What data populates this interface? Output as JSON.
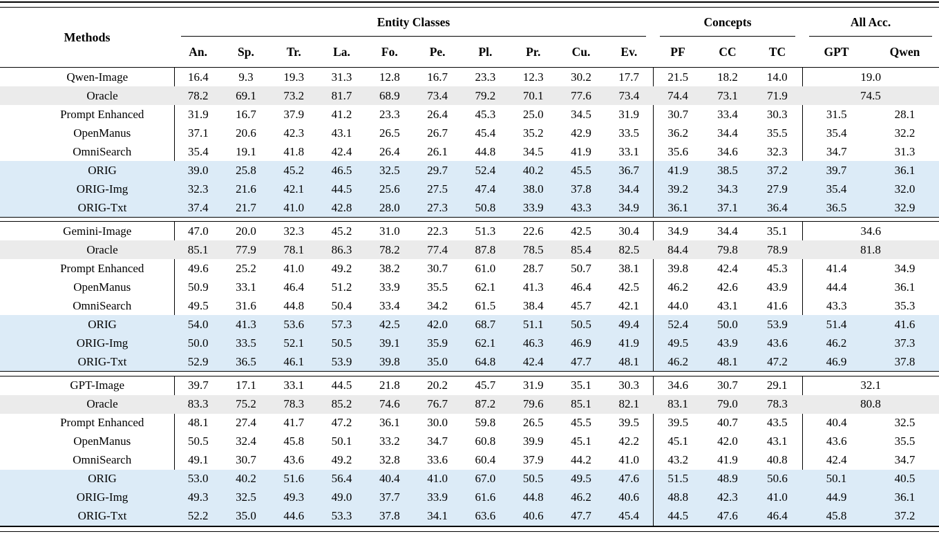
{
  "table": {
    "methods_header": "Methods",
    "groups": [
      {
        "label": "Entity Classes",
        "cols": [
          "An.",
          "Sp.",
          "Tr.",
          "La.",
          "Fo.",
          "Pe.",
          "Pl.",
          "Pr.",
          "Cu.",
          "Ev."
        ]
      },
      {
        "label": "Concepts",
        "cols": [
          "PF",
          "CC",
          "TC"
        ]
      },
      {
        "label": "All Acc.",
        "cols": [
          "GPT",
          "Qwen"
        ]
      }
    ],
    "blocks": [
      {
        "rows": [
          {
            "method": "Qwen-Image",
            "style": "base",
            "entity": [
              "16.4",
              "9.3",
              "19.3",
              "31.3",
              "12.8",
              "16.7",
              "23.3",
              "12.3",
              "30.2",
              "17.7"
            ],
            "concepts": [
              "21.5",
              "18.2",
              "14.0"
            ],
            "all_acc": [
              "19.0"
            ]
          },
          {
            "method": "Oracle",
            "style": "oracle",
            "entity": [
              "78.2",
              "69.1",
              "73.2",
              "81.7",
              "68.9",
              "73.4",
              "79.2",
              "70.1",
              "77.6",
              "73.4"
            ],
            "concepts": [
              "74.4",
              "73.1",
              "71.9"
            ],
            "all_acc": [
              "74.5"
            ]
          },
          {
            "method": "Prompt Enhanced",
            "style": "plain",
            "entity": [
              "31.9",
              "16.7",
              "37.9",
              "41.2",
              "23.3",
              "26.4",
              "45.3",
              "25.0",
              "34.5",
              "31.9"
            ],
            "concepts": [
              "30.7",
              "33.4",
              "30.3"
            ],
            "all_acc": [
              "31.5",
              "28.1"
            ]
          },
          {
            "method": "OpenManus",
            "style": "plain",
            "entity": [
              "37.1",
              "20.6",
              "42.3",
              "43.1",
              "26.5",
              "26.7",
              "45.4",
              "35.2",
              "42.9",
              "33.5"
            ],
            "concepts": [
              "36.2",
              "34.4",
              "35.5"
            ],
            "all_acc": [
              "35.4",
              "32.2"
            ]
          },
          {
            "method": "OmniSearch",
            "style": "plain",
            "entity": [
              "35.4",
              "19.1",
              "41.8",
              "42.4",
              "26.4",
              "26.1",
              "44.8",
              "34.5",
              "41.9",
              "33.1"
            ],
            "concepts": [
              "35.6",
              "34.6",
              "32.3"
            ],
            "all_acc": [
              "34.7",
              "31.3"
            ]
          },
          {
            "method": "ORIG",
            "style": "orig",
            "entity": [
              "39.0",
              "25.8",
              "45.2",
              "46.5",
              "32.5",
              "29.7",
              "52.4",
              "40.2",
              "45.5",
              "36.7"
            ],
            "concepts": [
              "41.9",
              "38.5",
              "37.2"
            ],
            "all_acc": [
              "39.7",
              "36.1"
            ]
          },
          {
            "method": "ORIG-Img",
            "style": "orig",
            "entity": [
              "32.3",
              "21.6",
              "42.1",
              "44.5",
              "25.6",
              "27.5",
              "47.4",
              "38.0",
              "37.8",
              "34.4"
            ],
            "concepts": [
              "39.2",
              "34.3",
              "27.9"
            ],
            "all_acc": [
              "35.4",
              "32.0"
            ]
          },
          {
            "method": "ORIG-Txt",
            "style": "orig",
            "entity": [
              "37.4",
              "21.7",
              "41.0",
              "42.8",
              "28.0",
              "27.3",
              "50.8",
              "33.9",
              "43.3",
              "34.9"
            ],
            "concepts": [
              "36.1",
              "37.1",
              "36.4"
            ],
            "all_acc": [
              "36.5",
              "32.9"
            ]
          }
        ]
      },
      {
        "rows": [
          {
            "method": "Gemini-Image",
            "style": "base",
            "entity": [
              "47.0",
              "20.0",
              "32.3",
              "45.2",
              "31.0",
              "22.3",
              "51.3",
              "22.6",
              "42.5",
              "30.4"
            ],
            "concepts": [
              "34.9",
              "34.4",
              "35.1"
            ],
            "all_acc": [
              "34.6"
            ]
          },
          {
            "method": "Oracle",
            "style": "oracle",
            "entity": [
              "85.1",
              "77.9",
              "78.1",
              "86.3",
              "78.2",
              "77.4",
              "87.8",
              "78.5",
              "85.4",
              "82.5"
            ],
            "concepts": [
              "84.4",
              "79.8",
              "78.9"
            ],
            "all_acc": [
              "81.8"
            ]
          },
          {
            "method": "Prompt Enhanced",
            "style": "plain",
            "entity": [
              "49.6",
              "25.2",
              "41.0",
              "49.2",
              "38.2",
              "30.7",
              "61.0",
              "28.7",
              "50.7",
              "38.1"
            ],
            "concepts": [
              "39.8",
              "42.4",
              "45.3"
            ],
            "all_acc": [
              "41.4",
              "34.9"
            ]
          },
          {
            "method": "OpenManus",
            "style": "plain",
            "entity": [
              "50.9",
              "33.1",
              "46.4",
              "51.2",
              "33.9",
              "35.5",
              "62.1",
              "41.3",
              "46.4",
              "42.5"
            ],
            "concepts": [
              "46.2",
              "42.6",
              "43.9"
            ],
            "all_acc": [
              "44.4",
              "36.1"
            ]
          },
          {
            "method": "OmniSearch",
            "style": "plain",
            "entity": [
              "49.5",
              "31.6",
              "44.8",
              "50.4",
              "33.4",
              "34.2",
              "61.5",
              "38.4",
              "45.7",
              "42.1"
            ],
            "concepts": [
              "44.0",
              "43.1",
              "41.6"
            ],
            "all_acc": [
              "43.3",
              "35.3"
            ]
          },
          {
            "method": "ORIG",
            "style": "orig",
            "entity": [
              "54.0",
              "41.3",
              "53.6",
              "57.3",
              "42.5",
              "42.0",
              "68.7",
              "51.1",
              "50.5",
              "49.4"
            ],
            "concepts": [
              "52.4",
              "50.0",
              "53.9"
            ],
            "all_acc": [
              "51.4",
              "41.6"
            ]
          },
          {
            "method": "ORIG-Img",
            "style": "orig",
            "entity": [
              "50.0",
              "33.5",
              "52.1",
              "50.5",
              "39.1",
              "35.9",
              "62.1",
              "46.3",
              "46.9",
              "41.9"
            ],
            "concepts": [
              "49.5",
              "43.9",
              "43.6"
            ],
            "all_acc": [
              "46.2",
              "37.3"
            ]
          },
          {
            "method": "ORIG-Txt",
            "style": "orig",
            "entity": [
              "52.9",
              "36.5",
              "46.1",
              "53.9",
              "39.8",
              "35.0",
              "64.8",
              "42.4",
              "47.7",
              "48.1"
            ],
            "concepts": [
              "46.2",
              "48.1",
              "47.2"
            ],
            "all_acc": [
              "46.9",
              "37.8"
            ]
          }
        ]
      },
      {
        "rows": [
          {
            "method": "GPT-Image",
            "style": "base",
            "entity": [
              "39.7",
              "17.1",
              "33.1",
              "44.5",
              "21.8",
              "20.2",
              "45.7",
              "31.9",
              "35.1",
              "30.3"
            ],
            "concepts": [
              "34.6",
              "30.7",
              "29.1"
            ],
            "all_acc": [
              "32.1"
            ]
          },
          {
            "method": "Oracle",
            "style": "oracle",
            "entity": [
              "83.3",
              "75.2",
              "78.3",
              "85.2",
              "74.6",
              "76.7",
              "87.2",
              "79.6",
              "85.1",
              "82.1"
            ],
            "concepts": [
              "83.1",
              "79.0",
              "78.3"
            ],
            "all_acc": [
              "80.8"
            ]
          },
          {
            "method": "Prompt Enhanced",
            "style": "plain",
            "entity": [
              "48.1",
              "27.4",
              "41.7",
              "47.2",
              "36.1",
              "30.0",
              "59.8",
              "26.5",
              "45.5",
              "39.5"
            ],
            "concepts": [
              "39.5",
              "40.7",
              "43.5"
            ],
            "all_acc": [
              "40.4",
              "32.5"
            ]
          },
          {
            "method": "OpenManus",
            "style": "plain",
            "entity": [
              "50.5",
              "32.4",
              "45.8",
              "50.1",
              "33.2",
              "34.7",
              "60.8",
              "39.9",
              "45.1",
              "42.2"
            ],
            "concepts": [
              "45.1",
              "42.0",
              "43.1"
            ],
            "all_acc": [
              "43.6",
              "35.5"
            ]
          },
          {
            "method": "OmniSearch",
            "style": "plain",
            "entity": [
              "49.1",
              "30.7",
              "43.6",
              "49.2",
              "32.8",
              "33.6",
              "60.4",
              "37.9",
              "44.2",
              "41.0"
            ],
            "concepts": [
              "43.2",
              "41.9",
              "40.8"
            ],
            "all_acc": [
              "42.4",
              "34.7"
            ]
          },
          {
            "method": "ORIG",
            "style": "orig",
            "entity": [
              "53.0",
              "40.2",
              "51.6",
              "56.4",
              "40.4",
              "41.0",
              "67.0",
              "50.5",
              "49.5",
              "47.6"
            ],
            "concepts": [
              "51.5",
              "48.9",
              "50.6"
            ],
            "all_acc": [
              "50.1",
              "40.5"
            ]
          },
          {
            "method": "ORIG-Img",
            "style": "orig",
            "entity": [
              "49.3",
              "32.5",
              "49.3",
              "49.0",
              "37.7",
              "33.9",
              "61.6",
              "44.8",
              "46.2",
              "40.6"
            ],
            "concepts": [
              "48.8",
              "42.3",
              "41.0"
            ],
            "all_acc": [
              "44.9",
              "36.1"
            ]
          },
          {
            "method": "ORIG-Txt",
            "style": "orig",
            "entity": [
              "52.2",
              "35.0",
              "44.6",
              "53.3",
              "37.8",
              "34.1",
              "63.6",
              "40.6",
              "47.7",
              "45.4"
            ],
            "concepts": [
              "44.5",
              "47.6",
              "46.4"
            ],
            "all_acc": [
              "45.8",
              "37.2"
            ]
          }
        ]
      }
    ]
  },
  "colors": {
    "oracle_row_bg": "#ebebeb",
    "orig_row_bg": "#dcebf7",
    "rule_color": "#000000"
  },
  "layout_widths": {
    "methods_col": "252",
    "entity_col": "69.3",
    "concept_col": "72",
    "all_acc_col": "99"
  }
}
